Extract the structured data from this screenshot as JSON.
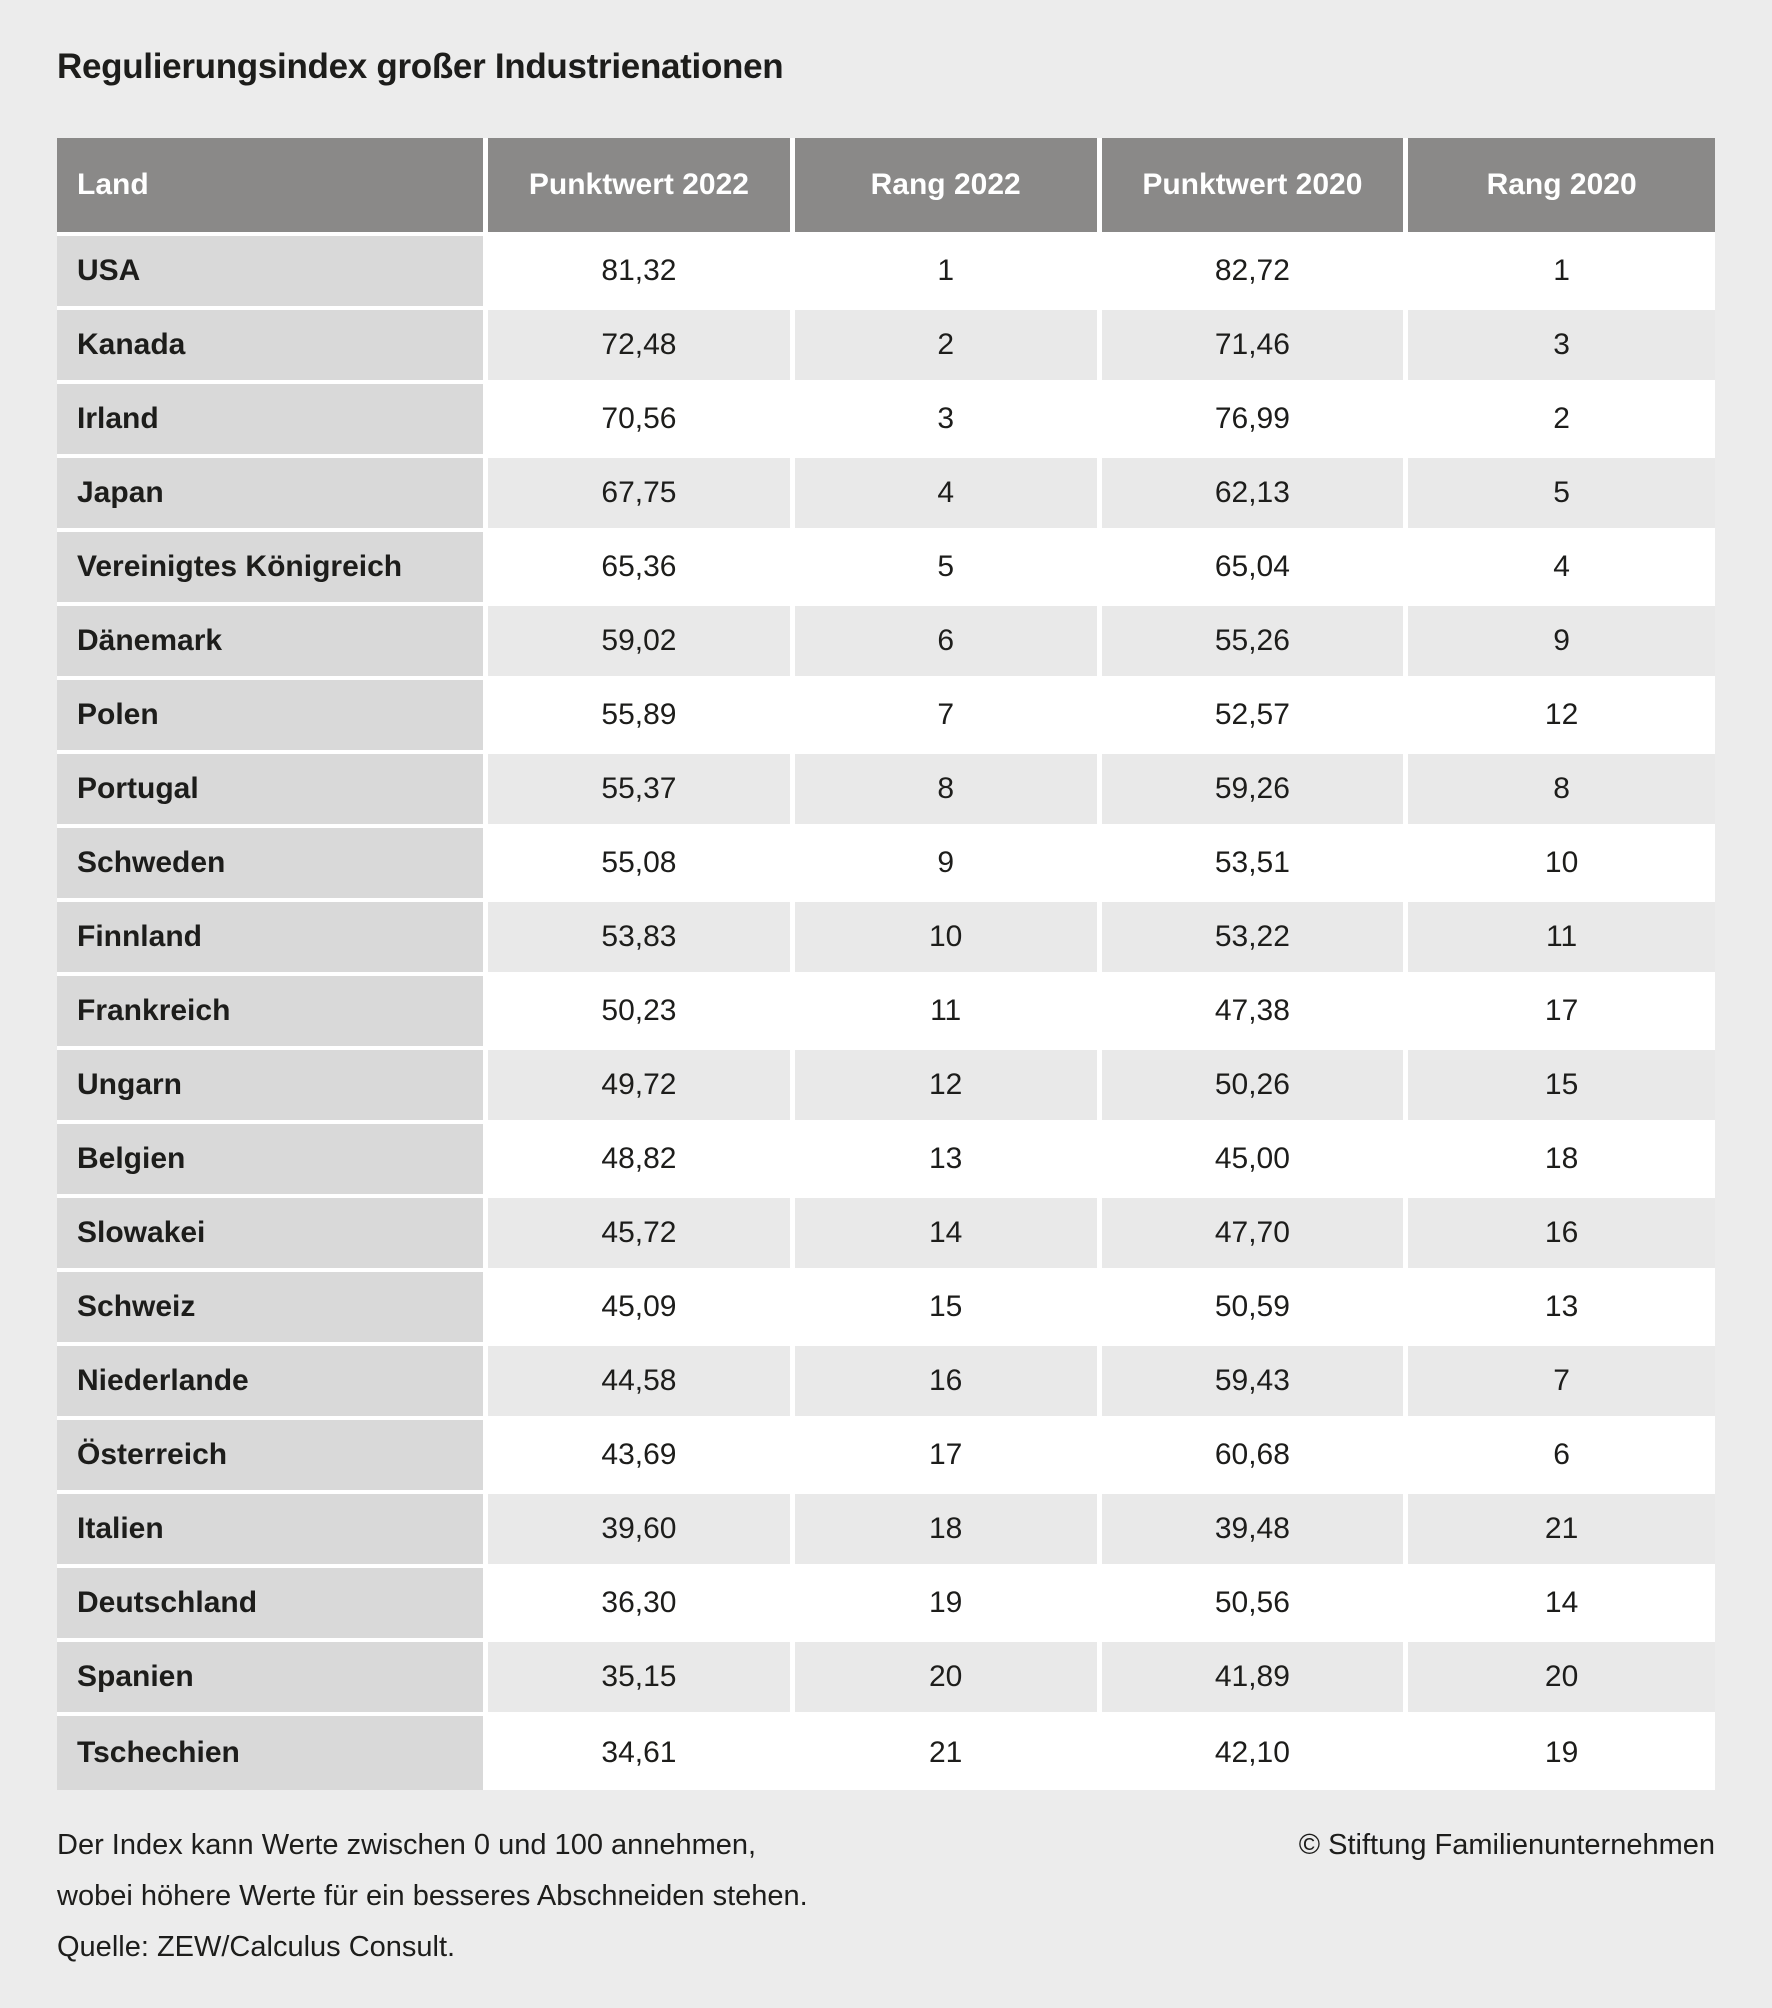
{
  "title": "Regulierungsindex großer Industrienationen",
  "chart_data": {
    "type": "table",
    "title": "Regulierungsindex großer Industrienationen",
    "columns": [
      "Land",
      "Punktwert 2022",
      "Rang 2022",
      "Punktwert 2020",
      "Rang 2020"
    ],
    "rows": [
      [
        "USA",
        "81,32",
        "1",
        "82,72",
        "1"
      ],
      [
        "Kanada",
        "72,48",
        "2",
        "71,46",
        "3"
      ],
      [
        "Irland",
        "70,56",
        "3",
        "76,99",
        "2"
      ],
      [
        "Japan",
        "67,75",
        "4",
        "62,13",
        "5"
      ],
      [
        "Vereinigtes Königreich",
        "65,36",
        "5",
        "65,04",
        "4"
      ],
      [
        "Dänemark",
        "59,02",
        "6",
        "55,26",
        "9"
      ],
      [
        "Polen",
        "55,89",
        "7",
        "52,57",
        "12"
      ],
      [
        "Portugal",
        "55,37",
        "8",
        "59,26",
        "8"
      ],
      [
        "Schweden",
        "55,08",
        "9",
        "53,51",
        "10"
      ],
      [
        "Finnland",
        "53,83",
        "10",
        "53,22",
        "11"
      ],
      [
        "Frankreich",
        "50,23",
        "11",
        "47,38",
        "17"
      ],
      [
        "Ungarn",
        "49,72",
        "12",
        "50,26",
        "15"
      ],
      [
        "Belgien",
        "48,82",
        "13",
        "45,00",
        "18"
      ],
      [
        "Slowakei",
        "45,72",
        "14",
        "47,70",
        "16"
      ],
      [
        "Schweiz",
        "45,09",
        "15",
        "50,59",
        "13"
      ],
      [
        "Niederlande",
        "44,58",
        "16",
        "59,43",
        "7"
      ],
      [
        "Österreich",
        "43,69",
        "17",
        "60,68",
        "6"
      ],
      [
        "Italien",
        "39,60",
        "18",
        "39,48",
        "21"
      ],
      [
        "Deutschland",
        "36,30",
        "19",
        "50,56",
        "14"
      ],
      [
        "Spanien",
        "35,15",
        "20",
        "41,89",
        "20"
      ],
      [
        "Tschechien",
        "34,61",
        "21",
        "42,10",
        "19"
      ]
    ],
    "value_range": [
      0,
      100
    ],
    "notes": "Der Index kann Werte zwischen 0 und 100 annehmen, wobei höhere Werte für ein besseres Abschneiden stehen."
  },
  "footnote": {
    "lines": [
      "Der Index kann Werte zwischen 0 und 100 annehmen,",
      "wobei höhere Werte für ein besseres Abschneiden stehen.",
      "Quelle: ZEW/Calculus Consult."
    ],
    "copyright": "© Stiftung Familienunternehmen"
  },
  "colors": {
    "page_bg": "#ececec",
    "header_bg": "#8a8988",
    "header_text": "#ffffff",
    "country_cell_bg": "#d9d9d9",
    "row_white_bg": "#ffffff",
    "row_gray_bg": "#e9e9e9",
    "cell_gap": "#ffffff",
    "text": "#1d1d1b"
  }
}
